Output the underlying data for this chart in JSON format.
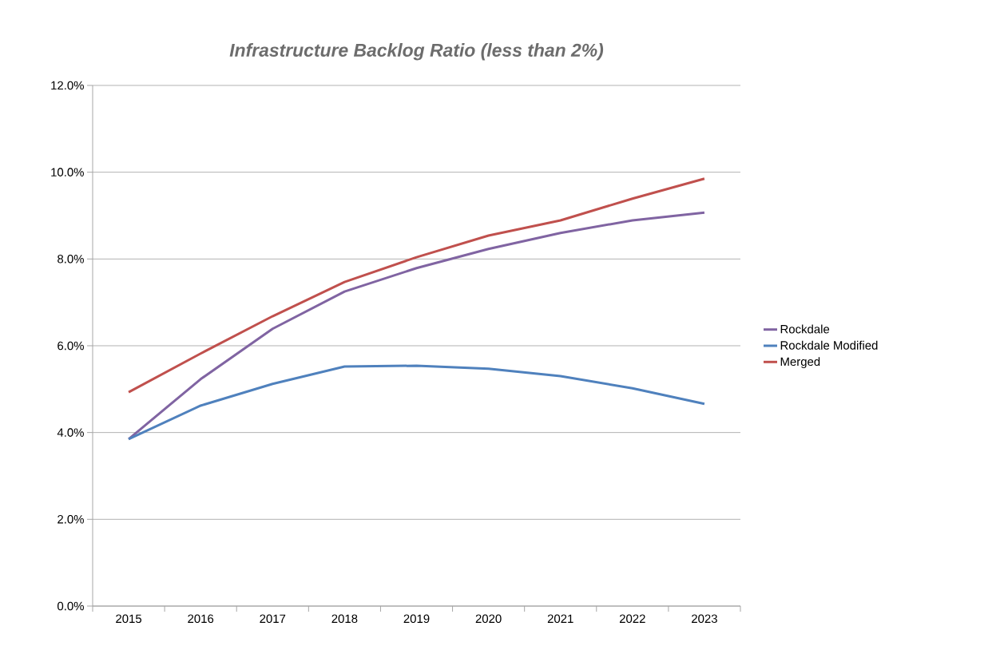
{
  "chart_data": {
    "type": "line",
    "title": "Infrastructure Backlog Ratio (less than 2%)",
    "categories": [
      "2015",
      "2016",
      "2017",
      "2018",
      "2019",
      "2020",
      "2021",
      "2022",
      "2023"
    ],
    "series": [
      {
        "name": "Rockdale",
        "color": "#8064a2",
        "values": [
          3.85,
          5.23,
          6.39,
          7.25,
          7.79,
          8.23,
          8.6,
          8.89,
          9.07
        ]
      },
      {
        "name": "Rockdale Modified",
        "color": "#4f81bd",
        "values": [
          3.85,
          4.62,
          5.12,
          5.52,
          5.54,
          5.47,
          5.3,
          5.02,
          4.66
        ]
      },
      {
        "name": "Merged",
        "color": "#c0504d",
        "values": [
          4.93,
          5.82,
          6.68,
          7.47,
          8.04,
          8.54,
          8.89,
          9.39,
          9.85
        ]
      }
    ],
    "ylim": [
      0,
      12
    ],
    "yticks": [
      {
        "value": 0,
        "label": "0.0%"
      },
      {
        "value": 2,
        "label": "2.0%"
      },
      {
        "value": 4,
        "label": "4.0%"
      },
      {
        "value": 6,
        "label": "6.0%"
      },
      {
        "value": 8,
        "label": "8.0%"
      },
      {
        "value": 10,
        "label": "10.0%"
      },
      {
        "value": 12,
        "label": "12.0%"
      }
    ],
    "grid": "y",
    "legend": "right",
    "marker": "none",
    "line_style": "solid"
  }
}
